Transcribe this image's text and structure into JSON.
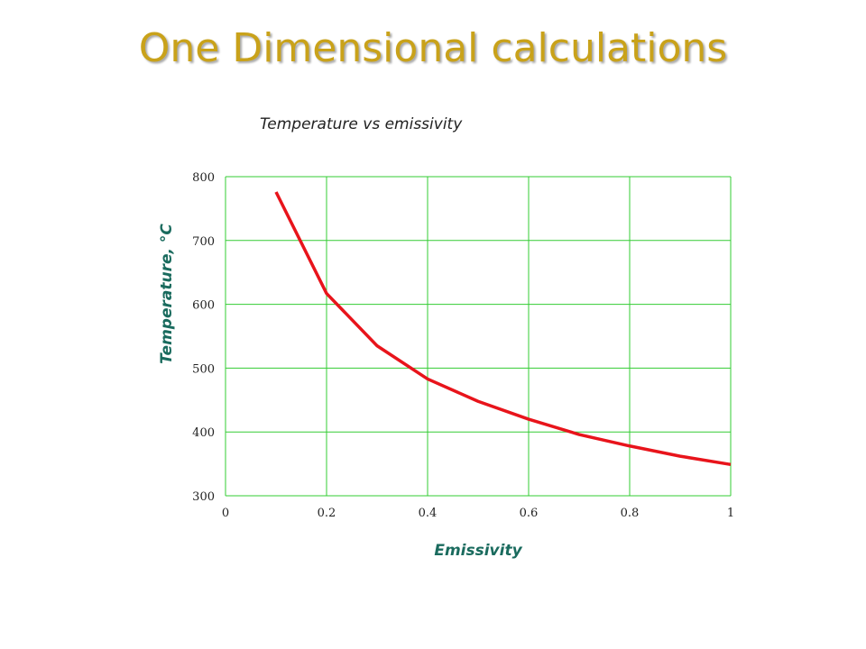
{
  "slide": {
    "title": "One Dimensional calculations"
  },
  "colors": {
    "title": "#c9a21a",
    "grid": "#33cc33",
    "line": "#e8141b",
    "axis_label": "#1a6b5e"
  },
  "chart_data": {
    "type": "line",
    "title": "Temperature vs emissivity",
    "xlabel": "Emissivity",
    "ylabel": "Temperature, ",
    "ylabel_unit": "°C",
    "xlim": [
      0,
      1
    ],
    "ylim": [
      300,
      800
    ],
    "xticks": [
      0,
      0.2,
      0.4,
      0.6,
      0.8,
      1
    ],
    "xtick_labels": [
      "0",
      "0.2",
      "0.4",
      "0.6",
      "0.8",
      "1"
    ],
    "yticks": [
      300,
      400,
      500,
      600,
      700,
      800
    ],
    "ytick_labels": [
      "300",
      "400",
      "500",
      "600",
      "700",
      "800"
    ],
    "grid": true,
    "series": [
      {
        "x": [
          0.1,
          0.2,
          0.3,
          0.4,
          0.5,
          0.6,
          0.7,
          0.8,
          0.9,
          1.0
        ],
        "y": [
          776,
          617,
          535,
          483,
          448,
          420,
          396,
          378,
          362,
          349
        ]
      }
    ]
  }
}
